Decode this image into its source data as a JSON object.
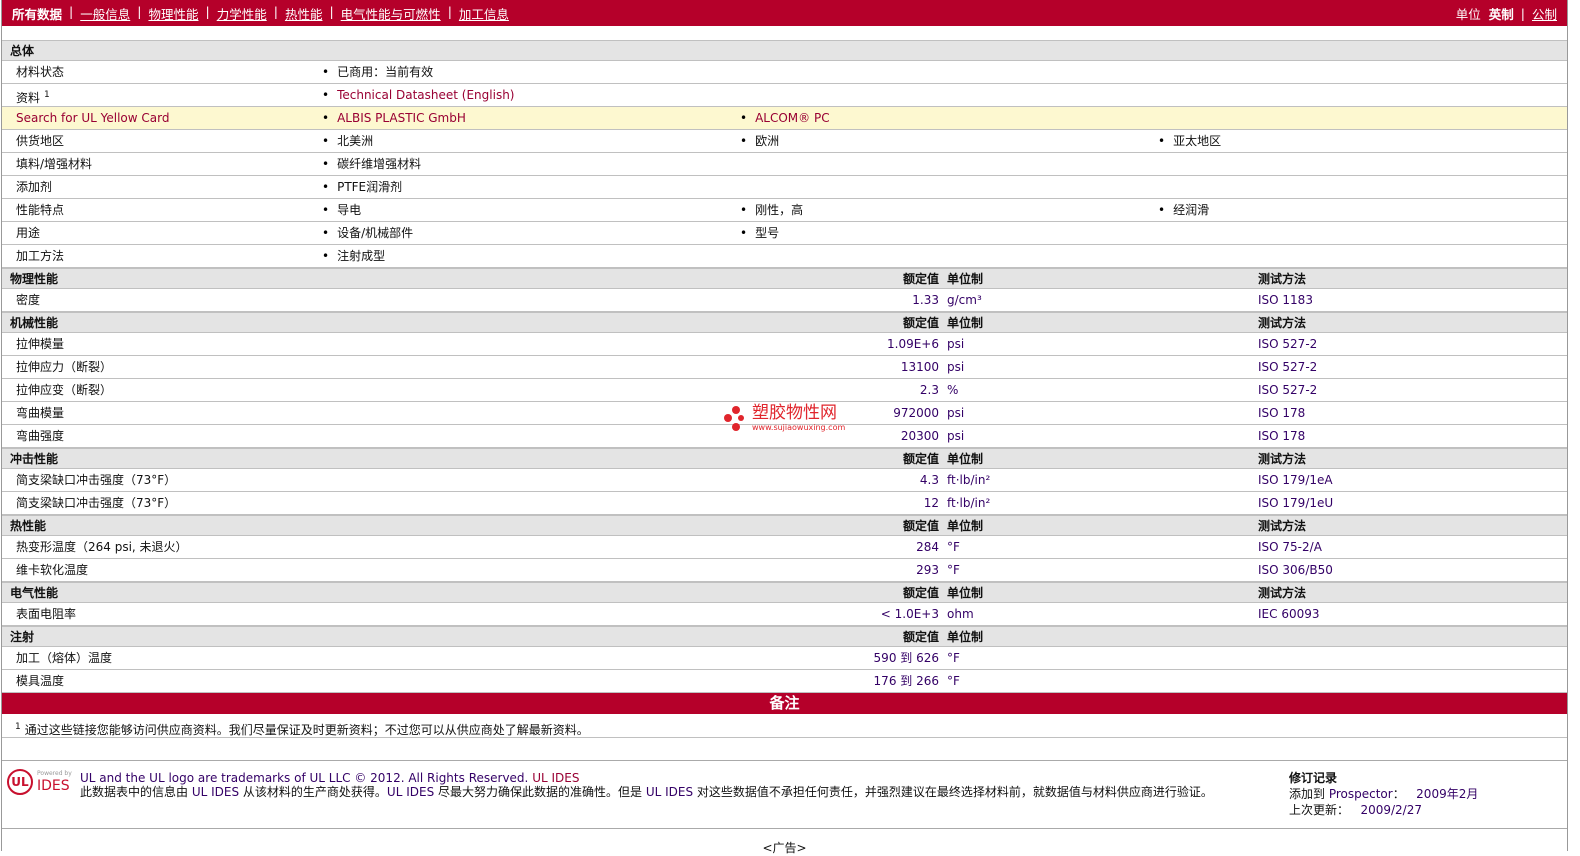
{
  "topbar": {
    "active": "所有数据",
    "tabs": [
      "一般信息",
      "物理性能",
      "力学性能",
      "热性能",
      "电气性能与可燃性",
      "加工信息"
    ],
    "units_label": "单位",
    "unit_active": "英制",
    "unit_other": "公制"
  },
  "general": {
    "title": "总体",
    "rows": [
      {
        "label": "材料状态",
        "items": [
          "已商用：当前有效"
        ]
      },
      {
        "label": "资料",
        "sup": "1",
        "items": [
          "Technical Datasheet (English)"
        ],
        "link": true
      },
      {
        "label": "Search for UL Yellow Card",
        "items": [
          "ALBIS PLASTIC GmbH",
          "ALCOM® PC"
        ],
        "link": true,
        "highlight": true
      },
      {
        "label": "供货地区",
        "items": [
          "北美洲",
          "欧洲",
          "亚太地区"
        ]
      },
      {
        "label": "填料/增强材料",
        "items": [
          "碳纤维增强材料"
        ]
      },
      {
        "label": "添加剂",
        "items": [
          "PTFE润滑剂"
        ]
      },
      {
        "label": "性能特点",
        "items": [
          "导电",
          "刚性，高",
          "经润滑"
        ]
      },
      {
        "label": "用途",
        "items": [
          "设备/机械部件",
          "型号"
        ]
      },
      {
        "label": "加工方法",
        "items": [
          "注射成型"
        ]
      }
    ]
  },
  "col_headers": {
    "value": "额定值",
    "unit": "单位制",
    "test": "测试方法"
  },
  "sections": [
    {
      "title": "物理性能",
      "test": true,
      "rows": [
        {
          "label": "密度",
          "value": "1.33",
          "unit": "g/cm³",
          "test": "ISO 1183"
        }
      ]
    },
    {
      "title": "机械性能",
      "test": true,
      "rows": [
        {
          "label": "拉伸模量",
          "value": "1.09E+6",
          "unit": "psi",
          "test": "ISO 527-2"
        },
        {
          "label": "拉伸应力（断裂）",
          "value": "13100",
          "unit": "psi",
          "test": "ISO 527-2"
        },
        {
          "label": "拉伸应变（断裂）",
          "value": "2.3",
          "unit": "%",
          "test": "ISO 527-2"
        },
        {
          "label": "弯曲模量",
          "value": "972000",
          "unit": "psi",
          "test": "ISO 178"
        },
        {
          "label": "弯曲强度",
          "value": "20300",
          "unit": "psi",
          "test": "ISO 178"
        }
      ]
    },
    {
      "title": "冲击性能",
      "test": true,
      "rows": [
        {
          "label": "简支梁缺口冲击强度（73°F）",
          "value": "4.3",
          "unit": "ft·lb/in²",
          "test": "ISO 179/1eA"
        },
        {
          "label": "简支梁缺口冲击强度（73°F）",
          "value": "12",
          "unit": "ft·lb/in²",
          "test": "ISO 179/1eU"
        }
      ]
    },
    {
      "title": "热性能",
      "test": true,
      "rows": [
        {
          "label": "热变形温度（264 psi, 未退火）",
          "value": "284",
          "unit": "°F",
          "test": "ISO 75-2/A"
        },
        {
          "label": "维卡软化温度",
          "value": "293",
          "unit": "°F",
          "test": "ISO 306/B50"
        }
      ]
    },
    {
      "title": "电气性能",
      "test": true,
      "rows": [
        {
          "label": "表面电阻率",
          "value": "< 1.0E+3",
          "unit": "ohm",
          "test": "IEC 60093"
        }
      ]
    },
    {
      "title": "注射",
      "test": false,
      "rows": [
        {
          "label": "加工（熔体）温度",
          "value": "590 到  626",
          "unit": "°F",
          "test": ""
        },
        {
          "label": "模具温度",
          "value": "176 到  266",
          "unit": "°F",
          "test": ""
        }
      ]
    }
  ],
  "notes": {
    "title": "备注",
    "sup": "1",
    "text": "通过这些链接您能够访问供应商资料。我们尽量保证及时更新资料；不过您可以从供应商处了解最新资料。"
  },
  "footer": {
    "logo": "UL IDES Powered by",
    "line1": "UL and the UL logo are trademarks of UL LLC © 2012. All Rights Reserved.",
    "line1_link": "UL IDES",
    "p1": "此数据表中的信息由 ",
    "ides": "UL IDES",
    "p2": " 从该材料的生产商处获得。",
    "p3": " 尽最大努力确保此数据的准确性。但是 ",
    "p4": " 对这些数据值不承担任何责任，并强烈建议在最终选择材料前，就数据值与材料供应商进行验证。",
    "rev_title": "修订记录",
    "added_label": "添加到 ",
    "added_link": "Prospector",
    "added_sep": "：",
    "added_date": "2009年2月",
    "updated_label": "上次更新：",
    "updated_date": "2009/2/27"
  },
  "ad": "<广告>",
  "watermark": {
    "title": "塑胶物性网",
    "url": "www.sujiaowuxing.com"
  }
}
